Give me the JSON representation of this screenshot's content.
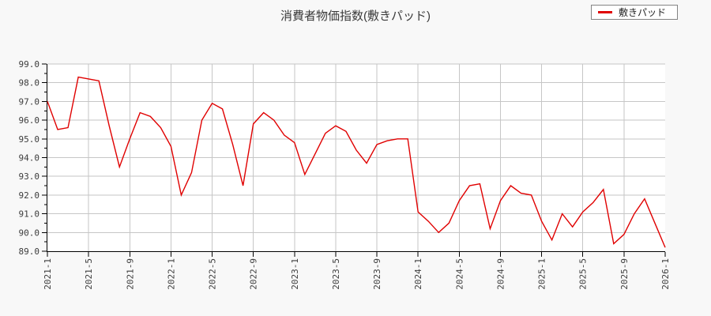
{
  "page": {
    "background": "#f8f8f8"
  },
  "chart_data": {
    "type": "line",
    "title": "消費者物価指数(敷きパッド)",
    "legend": {
      "label": "敷きパッド",
      "position": "top-right"
    },
    "x": [
      "2021-1",
      "2021-2",
      "2021-3",
      "2021-4",
      "2021-5",
      "2021-6",
      "2021-7",
      "2021-8",
      "2021-9",
      "2021-10",
      "2021-11",
      "2021-12",
      "2022-1",
      "2022-2",
      "2022-3",
      "2022-4",
      "2022-5",
      "2022-6",
      "2022-7",
      "2022-8",
      "2022-9",
      "2022-10",
      "2022-11",
      "2022-12",
      "2023-1",
      "2023-2",
      "2023-3",
      "2023-4",
      "2023-5",
      "2023-6",
      "2023-7",
      "2023-8",
      "2023-9",
      "2023-10",
      "2023-11",
      "2023-12",
      "2024-1",
      "2024-2",
      "2024-3",
      "2024-4",
      "2024-5",
      "2024-6",
      "2024-7",
      "2024-8",
      "2024-9",
      "2024-10",
      "2024-11",
      "2024-12",
      "2025-1",
      "2025-2",
      "2025-3",
      "2025-4",
      "2025-5",
      "2025-6",
      "2025-7",
      "2025-8",
      "2025-9",
      "2025-10",
      "2025-11",
      "2025-12",
      "2026-1"
    ],
    "x_tick_labels": [
      "2021-1",
      "2021-5",
      "2021-9",
      "2022-1",
      "2022-5",
      "2022-9",
      "2023-1",
      "2023-5",
      "2023-9",
      "2024-1",
      "2024-5",
      "2024-9",
      "2025-1",
      "2025-5",
      "2025-9",
      "2026-1"
    ],
    "x_tick_every": 4,
    "series": [
      {
        "name": "敷きパッド",
        "color": "#e00000",
        "values": [
          97.0,
          95.5,
          95.6,
          98.3,
          98.2,
          98.1,
          95.7,
          93.5,
          95.0,
          96.4,
          96.2,
          95.6,
          94.6,
          92.0,
          93.2,
          96.0,
          96.9,
          96.6,
          94.7,
          92.5,
          95.8,
          96.4,
          96.0,
          95.2,
          94.8,
          93.1,
          94.2,
          95.3,
          95.7,
          95.4,
          94.4,
          93.7,
          94.7,
          94.9,
          95.0,
          95.0,
          91.1,
          90.6,
          90.0,
          90.5,
          91.7,
          92.5,
          92.6,
          90.2,
          91.7,
          92.5,
          92.1,
          92.0,
          90.6,
          89.6,
          91.0,
          90.3,
          91.1,
          91.6,
          92.3,
          89.4,
          89.9,
          91.0,
          91.8,
          90.5,
          89.2
        ]
      }
    ],
    "ylim": [
      89.0,
      99.0
    ],
    "y_tick_step": 1.0,
    "y_minor_tick_step": 0.5,
    "y_tick_decimals": 1,
    "grid": true,
    "colors": {
      "grid": "#c6c6c6",
      "axis": "#000000",
      "plot_bg": "#ffffff",
      "text": "#3c3c3c"
    }
  }
}
